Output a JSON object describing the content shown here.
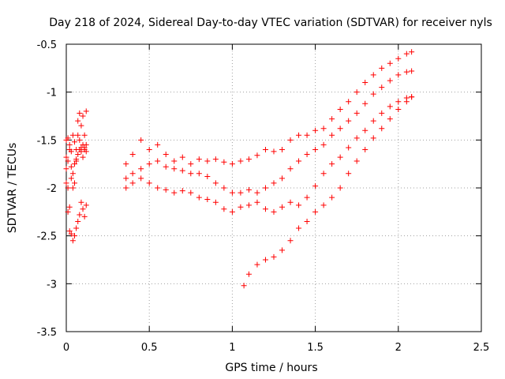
{
  "chart_data": {
    "type": "scatter",
    "title": "Day 218 of 2024, Sidereal Day-to-day VTEC variation (SDTVAR) for receiver nyls",
    "xlabel": "GPS time / hours",
    "ylabel": "SDTVAR / TECUs",
    "xlim": [
      0,
      2.5
    ],
    "ylim": [
      -3.5,
      -0.5
    ],
    "xticks": [
      0,
      0.5,
      1,
      1.5,
      2,
      2.5
    ],
    "xtick_labels": [
      "0",
      "0.5",
      "1",
      "1.5",
      "2",
      "2.5"
    ],
    "yticks": [
      -3.5,
      -3,
      -2.5,
      -2,
      -1.5,
      -1,
      -0.5
    ],
    "ytick_labels": [
      "-3.5",
      "-3",
      "-2.5",
      "-2",
      "-1.5",
      "-1",
      "-0.5"
    ],
    "grid": true,
    "marker": "+",
    "marker_color": "#ff0000",
    "series": [
      {
        "x": [
          0.0,
          0.01,
          0.02,
          0.03,
          0.04,
          0.05,
          0.06,
          0.07,
          0.08,
          0.09,
          0.1,
          0.11,
          0.12
        ],
        "y": [
          -1.5,
          -1.48,
          -1.55,
          -1.62,
          -1.45,
          -1.52,
          -1.7,
          -1.45,
          -1.5,
          -1.58,
          -1.55,
          -1.6,
          -1.62
        ]
      },
      {
        "x": [
          0.0,
          0.01,
          0.02,
          0.03,
          0.04,
          0.05,
          0.06,
          0.07,
          0.08,
          0.09,
          0.1,
          0.11,
          0.12
        ],
        "y": [
          -1.68,
          -1.72,
          -1.6,
          -1.78,
          -1.85,
          -1.75,
          -1.6,
          -1.3,
          -1.22,
          -1.35,
          -1.25,
          -1.45,
          -1.2
        ]
      },
      {
        "x": [
          0.0,
          0.01,
          0.02,
          0.03,
          0.04,
          0.05,
          0.06,
          0.07,
          0.08,
          0.09,
          0.1,
          0.11,
          0.12
        ],
        "y": [
          -1.8,
          -2.25,
          -2.2,
          -1.9,
          -2.0,
          -1.95,
          -1.72,
          -1.65,
          -1.6,
          -1.62,
          -1.68,
          -1.58,
          -1.55
        ]
      },
      {
        "x": [
          0.0,
          0.01,
          0.02,
          0.03,
          0.04,
          0.05,
          0.06,
          0.07,
          0.08,
          0.09,
          0.1,
          0.11,
          0.12
        ],
        "y": [
          -1.95,
          -2.0,
          -2.45,
          -2.48,
          -2.55,
          -2.5,
          -2.42,
          -2.35,
          -2.28,
          -2.15,
          -2.22,
          -2.3,
          -2.18
        ]
      },
      {
        "x": [
          0.36,
          0.4,
          0.45,
          0.5,
          0.55,
          0.6,
          0.65,
          0.7,
          0.75,
          0.8,
          0.85,
          0.9,
          0.95,
          1.0,
          1.05,
          1.1,
          1.15,
          1.2,
          1.25,
          1.3,
          1.35,
          1.4,
          1.45,
          1.5,
          1.55,
          1.6,
          1.65,
          1.7,
          1.75,
          1.8,
          1.85,
          1.9,
          1.95,
          2.0,
          2.05,
          2.08
        ],
        "y": [
          -1.75,
          -1.65,
          -1.5,
          -1.6,
          -1.55,
          -1.65,
          -1.72,
          -1.68,
          -1.75,
          -1.7,
          -1.72,
          -1.7,
          -1.73,
          -1.75,
          -1.72,
          -1.7,
          -1.66,
          -1.6,
          -1.62,
          -1.6,
          -1.5,
          -1.45,
          -1.45,
          -1.4,
          -1.38,
          -1.28,
          -1.18,
          -1.1,
          -1.0,
          -0.9,
          -0.82,
          -0.75,
          -0.7,
          -0.65,
          -0.6,
          -0.58
        ]
      },
      {
        "x": [
          0.36,
          0.4,
          0.45,
          0.5,
          0.55,
          0.6,
          0.65,
          0.7,
          0.75,
          0.8,
          0.85,
          0.9,
          0.95,
          1.0,
          1.05,
          1.1,
          1.15,
          1.2,
          1.25,
          1.3,
          1.35,
          1.4,
          1.45,
          1.5,
          1.55,
          1.6,
          1.65,
          1.7,
          1.75,
          1.8,
          1.85,
          1.9,
          1.95,
          2.0,
          2.05,
          2.08
        ],
        "y": [
          -1.9,
          -1.85,
          -1.8,
          -1.75,
          -1.72,
          -1.78,
          -1.8,
          -1.82,
          -1.85,
          -1.85,
          -1.88,
          -1.95,
          -2.0,
          -2.05,
          -2.05,
          -2.02,
          -2.05,
          -2.0,
          -1.95,
          -1.9,
          -1.8,
          -1.72,
          -1.65,
          -1.6,
          -1.55,
          -1.45,
          -1.38,
          -1.3,
          -1.22,
          -1.12,
          -1.02,
          -0.95,
          -0.88,
          -0.82,
          -0.79,
          -0.78
        ]
      },
      {
        "x": [
          0.36,
          0.4,
          0.45,
          0.5,
          0.55,
          0.6,
          0.65,
          0.7,
          0.75,
          0.8,
          0.85,
          0.9,
          0.95,
          1.0,
          1.05,
          1.1,
          1.15,
          1.2,
          1.25,
          1.3,
          1.35,
          1.4,
          1.45,
          1.5,
          1.55,
          1.6,
          1.65,
          1.7,
          1.75,
          1.8,
          1.85,
          1.9,
          1.95,
          2.0,
          2.05,
          2.08
        ],
        "y": [
          -2.0,
          -1.95,
          -1.9,
          -1.95,
          -2.0,
          -2.02,
          -2.05,
          -2.03,
          -2.05,
          -2.1,
          -2.12,
          -2.15,
          -2.22,
          -2.25,
          -2.2,
          -2.18,
          -2.15,
          -2.22,
          -2.25,
          -2.2,
          -2.15,
          -2.18,
          -2.1,
          -1.98,
          -1.85,
          -1.75,
          -1.68,
          -1.58,
          -1.48,
          -1.4,
          -1.3,
          -1.22,
          -1.15,
          -1.1,
          -1.06,
          -1.05
        ]
      },
      {
        "x": [
          1.07,
          1.1,
          1.15,
          1.2,
          1.25,
          1.3,
          1.35,
          1.4,
          1.45,
          1.5,
          1.55,
          1.6,
          1.65,
          1.7,
          1.75,
          1.8,
          1.85,
          1.9,
          1.95,
          2.0,
          2.05,
          2.08
        ],
        "y": [
          -3.02,
          -2.9,
          -2.8,
          -2.75,
          -2.72,
          -2.65,
          -2.55,
          -2.42,
          -2.35,
          -2.25,
          -2.18,
          -2.1,
          -2.0,
          -1.85,
          -1.72,
          -1.6,
          -1.48,
          -1.38,
          -1.28,
          -1.18,
          -1.1,
          -1.05
        ]
      }
    ]
  }
}
